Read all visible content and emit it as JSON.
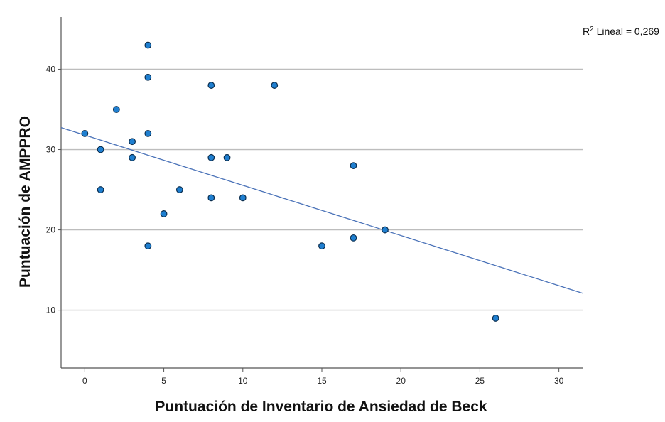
{
  "chart_data": {
    "type": "scatter",
    "xlabel": "Puntuación de Inventario de Ansiedad de Beck",
    "ylabel": "Puntuación de AMPPRO",
    "xlim": [
      -1.5,
      31.5
    ],
    "ylim": [
      2.8,
      46.5
    ],
    "x_ticks": [
      0,
      5,
      10,
      15,
      20,
      25,
      30
    ],
    "y_ticks": [
      10,
      20,
      30,
      40
    ],
    "grid": "horizontal",
    "points": [
      {
        "x": 0,
        "y": 32
      },
      {
        "x": 1,
        "y": 30
      },
      {
        "x": 1,
        "y": 25
      },
      {
        "x": 2,
        "y": 35
      },
      {
        "x": 3,
        "y": 31
      },
      {
        "x": 3,
        "y": 29
      },
      {
        "x": 4,
        "y": 43
      },
      {
        "x": 4,
        "y": 39
      },
      {
        "x": 4,
        "y": 32
      },
      {
        "x": 4,
        "y": 18
      },
      {
        "x": 5,
        "y": 22
      },
      {
        "x": 6,
        "y": 25
      },
      {
        "x": 8,
        "y": 38
      },
      {
        "x": 8,
        "y": 29
      },
      {
        "x": 8,
        "y": 24
      },
      {
        "x": 9,
        "y": 29
      },
      {
        "x": 10,
        "y": 24
      },
      {
        "x": 12,
        "y": 38
      },
      {
        "x": 15,
        "y": 18
      },
      {
        "x": 17,
        "y": 28
      },
      {
        "x": 17,
        "y": 19
      },
      {
        "x": 19,
        "y": 20
      },
      {
        "x": 26,
        "y": 9
      }
    ],
    "fit_line": {
      "intercept": 31.8,
      "slope": -0.625
    },
    "annotation": {
      "r2_prefix": "R",
      "r2_sup": "2",
      "r2_text": " Lineal = 0,269"
    },
    "colors": {
      "point_fill": "#1f7fd0",
      "point_stroke": "#0b2e4f",
      "line": "#4a72b8",
      "grid": "#bdbdbd",
      "axis": "#555555"
    }
  }
}
